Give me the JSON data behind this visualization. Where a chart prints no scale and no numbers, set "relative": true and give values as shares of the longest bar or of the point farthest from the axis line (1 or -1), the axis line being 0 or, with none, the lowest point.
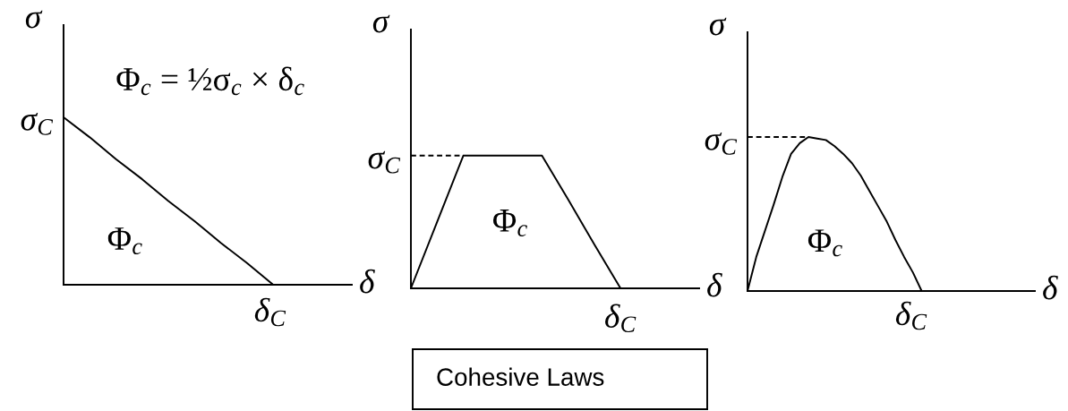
{
  "chart_data": [
    {
      "type": "line",
      "relative": true,
      "xlabel": "δ",
      "ylabel": "σ",
      "line_style": "solid",
      "categories": [
        null,
        null,
        null,
        null,
        null,
        null,
        null,
        null,
        null,
        null,
        null,
        null
      ],
      "series": [
        {
          "color": "#000000",
          "values": [
            1,
            0.88,
            0.75,
            0.63,
            0.5,
            0.38,
            0.25,
            0.13,
            0,
            null,
            null,
            null
          ]
        }
      ],
      "annotations": [
        "Φ$_{c}$ = ½σ$_{c}$ × δ$_{c}$",
        "Φ$_{c}$",
        "δ$_{C}$",
        "σ$_{C}$"
      ]
    },
    {
      "type": "line",
      "relative": true,
      "xlabel": "δ",
      "ylabel": "σ",
      "line_style": "solid",
      "categories": [
        null,
        null,
        null,
        null,
        null,
        null,
        null,
        null,
        null,
        null,
        null,
        null
      ],
      "series": [
        {
          "color": "#000000",
          "values": [
            0,
            0.5,
            1,
            1,
            1,
            1,
            0.67,
            0.33,
            0,
            null,
            null,
            null
          ]
        },
        {
          "color": "#000000",
          "values": [
            1,
            1,
            1,
            null,
            null,
            null,
            null,
            null,
            null,
            null,
            null,
            null
          ],
          "line_style": "dashed"
        }
      ],
      "annotations": [
        "Φ$_{c}$",
        "δ$_{C}$",
        "σ$_{C}$"
      ]
    },
    {
      "type": "line",
      "relative": true,
      "xlabel": "δ",
      "ylabel": "σ",
      "line_style": "solid",
      "categories": [
        null,
        null,
        null,
        null,
        null,
        null,
        null,
        null,
        null,
        null,
        null,
        null,
        null,
        null,
        null,
        null,
        null,
        null,
        null,
        null,
        null,
        null,
        null,
        null,
        null,
        null,
        null,
        null,
        null,
        null,
        null,
        null,
        null,
        null
      ],
      "series": [
        {
          "color": "#000000",
          "values": [
            0,
            0.22,
            0.39,
            0.56,
            0.74,
            0.89,
            0.96,
            1,
            0.99,
            0.98,
            0.94,
            0.89,
            0.83,
            0.75,
            0.65,
            0.55,
            0.45,
            0.33,
            0.22,
            0.12,
            0,
            null,
            null,
            null,
            null,
            null,
            null,
            null,
            null,
            null,
            null,
            null,
            null,
            null
          ]
        },
        {
          "color": "#000000",
          "values": [
            1,
            1,
            1,
            1,
            1,
            1,
            1,
            1,
            null,
            null,
            null,
            null,
            null,
            null,
            null,
            null,
            null,
            null,
            null,
            null,
            null,
            null,
            null,
            null,
            null,
            null,
            null,
            null,
            null,
            null,
            null,
            null,
            null,
            null
          ],
          "line_style": "dashed"
        }
      ],
      "annotations": [
        "Φ$_{c}$",
        "δ$_{C}$",
        "σ$_{C}$"
      ]
    },
    {
      "type": "other",
      "annotations": [
        "Cohesive Laws"
      ]
    }
  ]
}
